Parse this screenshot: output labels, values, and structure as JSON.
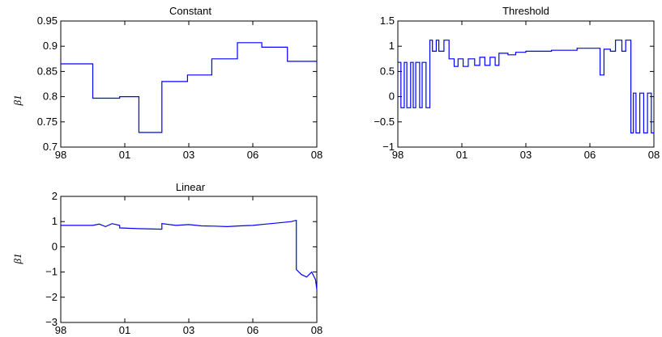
{
  "figure": {
    "background": "#ffffff",
    "line_color": "#0000ff"
  },
  "chart_data": [
    {
      "type": "line",
      "title": "Constant",
      "xlabel": "",
      "ylabel": "β1",
      "xticks": [
        "98",
        "01",
        "03",
        "06",
        "08"
      ],
      "xlim": [
        1998.0,
        2008.0
      ],
      "ylim": [
        0.7,
        0.95
      ],
      "yticks": [
        0.7,
        0.75,
        0.8,
        0.85,
        0.9,
        0.95
      ],
      "ytick_labels": [
        "0.7",
        "0.75",
        "0.8",
        "0.85",
        "0.9",
        "0.95"
      ],
      "grid": false,
      "series": [
        {
          "x": [
            1998.0,
            1999.25,
            1999.25,
            2000.3,
            2000.3,
            2001.05,
            2001.05,
            2001.95,
            2001.95,
            2002.95,
            2002.95,
            2003.9,
            2003.9,
            2004.9,
            2004.9,
            2005.85,
            2005.85,
            2006.85,
            2006.85,
            2008.0
          ],
          "y": [
            0.865,
            0.865,
            0.797,
            0.797,
            0.8,
            0.8,
            0.729,
            0.729,
            0.83,
            0.83,
            0.843,
            0.843,
            0.875,
            0.875,
            0.907,
            0.907,
            0.898,
            0.898,
            0.87,
            0.87
          ]
        }
      ]
    },
    {
      "type": "line",
      "title": "Threshold",
      "xlabel": "",
      "ylabel": "",
      "xticks": [
        "98",
        "01",
        "03",
        "06",
        "08"
      ],
      "xlim": [
        1998.0,
        2008.0
      ],
      "ylim": [
        -1.0,
        1.5
      ],
      "yticks": [
        -1.0,
        -0.5,
        0.0,
        0.5,
        1.0,
        1.5
      ],
      "ytick_labels": [
        "−1",
        "−0.5",
        "0",
        "0.5",
        "1",
        "1.5"
      ],
      "grid": false,
      "series": [
        {
          "x": [
            1998.0,
            1998.12,
            1998.12,
            1998.25,
            1998.25,
            1998.35,
            1998.35,
            1998.5,
            1998.5,
            1998.6,
            1998.6,
            1998.7,
            1998.7,
            1998.85,
            1998.85,
            1998.95,
            1998.95,
            1999.1,
            1999.1,
            1999.25,
            1999.25,
            1999.35,
            1999.35,
            1999.5,
            1999.5,
            1999.6,
            1999.6,
            1999.8,
            1999.8,
            2000.0,
            2000.0,
            2000.2,
            2000.2,
            2000.35,
            2000.35,
            2000.55,
            2000.55,
            2000.75,
            2000.75,
            2001.0,
            2001.0,
            2001.2,
            2001.2,
            2001.4,
            2001.4,
            2001.6,
            2001.6,
            2001.8,
            2001.8,
            2001.95,
            2001.95,
            2002.3,
            2002.3,
            2002.6,
            2002.6,
            2003.0,
            2003.0,
            2004.0,
            2004.0,
            2005.0,
            2005.0,
            2005.9,
            2005.9,
            2006.05,
            2006.05,
            2006.3,
            2006.3,
            2006.5,
            2006.5,
            2006.75,
            2006.75,
            2006.9,
            2006.9,
            2007.1,
            2007.1,
            2007.2,
            2007.2,
            2007.3,
            2007.3,
            2007.45,
            2007.45,
            2007.6,
            2007.6,
            2007.75,
            2007.75,
            2007.9,
            2007.9,
            2008.0
          ],
          "y": [
            0.68,
            0.68,
            -0.22,
            -0.22,
            0.68,
            0.68,
            -0.22,
            -0.22,
            0.68,
            0.68,
            -0.22,
            -0.22,
            0.68,
            0.68,
            -0.22,
            -0.22,
            0.68,
            0.68,
            -0.22,
            -0.22,
            1.12,
            1.12,
            0.9,
            0.9,
            1.12,
            1.12,
            0.9,
            0.9,
            1.12,
            1.12,
            0.75,
            0.75,
            0.6,
            0.6,
            0.75,
            0.75,
            0.6,
            0.6,
            0.75,
            0.75,
            0.62,
            0.62,
            0.78,
            0.78,
            0.62,
            0.62,
            0.78,
            0.78,
            0.62,
            0.62,
            0.86,
            0.86,
            0.83,
            0.83,
            0.88,
            0.88,
            0.9,
            0.9,
            0.92,
            0.92,
            0.96,
            0.96,
            0.43,
            0.43,
            0.94,
            0.94,
            0.9,
            0.9,
            1.12,
            1.12,
            0.9,
            0.9,
            1.12,
            1.12,
            -0.72,
            -0.72,
            0.07,
            0.07,
            -0.72,
            -0.72,
            0.07,
            0.07,
            -0.72,
            -0.72,
            0.07,
            0.07,
            -0.72,
            -0.72
          ]
        }
      ]
    },
    {
      "type": "line",
      "title": "Linear",
      "xlabel": "",
      "ylabel": "β1",
      "xticks": [
        "98",
        "01",
        "03",
        "06",
        "08"
      ],
      "xlim": [
        1998.0,
        2008.0
      ],
      "ylim": [
        -3.0,
        2.0
      ],
      "yticks": [
        -3,
        -2,
        -1,
        0,
        1,
        2
      ],
      "ytick_labels": [
        "−3",
        "−2",
        "−1",
        "0",
        "1",
        "2"
      ],
      "grid": false,
      "series": [
        {
          "x": [
            1998.0,
            1999.25,
            1999.5,
            1999.75,
            2000.0,
            2000.3,
            2000.3,
            2001.0,
            2001.95,
            2001.95,
            2002.5,
            2003.0,
            2003.5,
            2004.0,
            2004.5,
            2005.0,
            2005.5,
            2006.0,
            2006.5,
            2007.0,
            2007.2,
            2007.2,
            2007.4,
            2007.6,
            2007.8,
            2007.95,
            2008.0
          ],
          "y": [
            0.85,
            0.85,
            0.9,
            0.8,
            0.92,
            0.85,
            0.75,
            0.72,
            0.7,
            0.92,
            0.85,
            0.88,
            0.83,
            0.82,
            0.8,
            0.83,
            0.85,
            0.9,
            0.95,
            1.0,
            1.05,
            -0.9,
            -1.1,
            -1.2,
            -1.0,
            -1.3,
            -1.7
          ]
        }
      ]
    }
  ]
}
